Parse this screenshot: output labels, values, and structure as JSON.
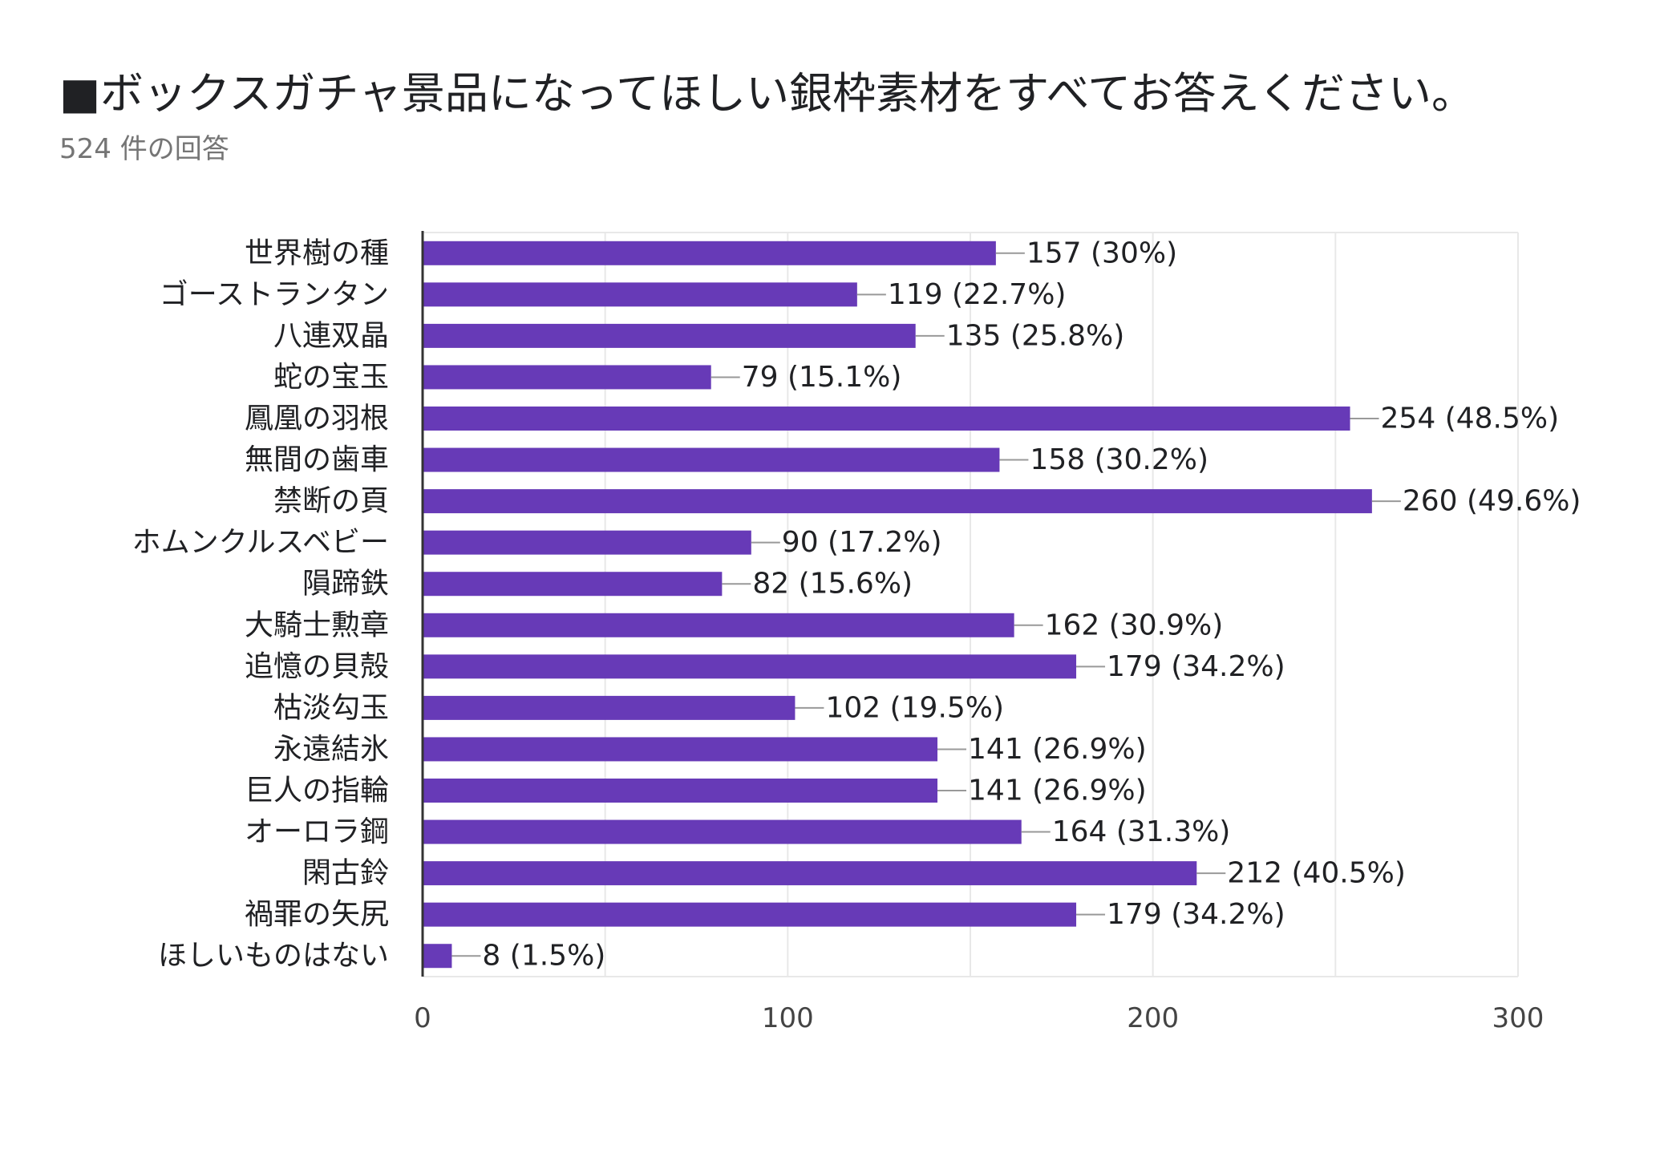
{
  "title": "■ボックスガチャ景品になってほしい銀枠素材をすべてお答えください。",
  "subtitle": "524 件の回答",
  "colors": {
    "bar": "#673ab7",
    "grid": "#e8e8e8",
    "axis": "#333333",
    "leader": "#999999"
  },
  "chart_data": {
    "type": "bar",
    "orientation": "horizontal",
    "title": "■ボックスガチャ景品になってほしい銀枠素材をすべてお答えください。",
    "subtitle": "524 件の回答",
    "xlabel": "",
    "ylabel": "",
    "xlim": [
      0,
      300
    ],
    "xticks": [
      0,
      100,
      200,
      300
    ],
    "xtick_labels": [
      "0",
      "100",
      "200",
      "300"
    ],
    "grid": true,
    "categories": [
      "世界樹の種",
      "ゴーストランタン",
      "八連双晶",
      "蛇の宝玉",
      "鳳凰の羽根",
      "無間の歯車",
      "禁断の頁",
      "ホムンクルスベビー",
      "隕蹄鉄",
      "大騎士勲章",
      "追憶の貝殻",
      "枯淡勾玉",
      "永遠結氷",
      "巨人の指輪",
      "オーロラ鋼",
      "閑古鈴",
      "禍罪の矢尻",
      "ほしいものはない"
    ],
    "values": [
      157,
      119,
      135,
      79,
      254,
      158,
      260,
      90,
      82,
      162,
      179,
      102,
      141,
      141,
      164,
      212,
      179,
      8
    ],
    "data_labels": [
      "157 (30%)",
      "119 (22.7%)",
      "135 (25.8%)",
      "79 (15.1%)",
      "254 (48.5%)",
      "158 (30.2%)",
      "260 (49.6%)",
      "90 (17.2%)",
      "82 (15.6%)",
      "162 (30.9%)",
      "179 (34.2%)",
      "102 (19.5%)",
      "141 (26.9%)",
      "141 (26.9%)",
      "164 (31.3%)",
      "212 (40.5%)",
      "179 (34.2%)",
      "8 (1.5%)"
    ]
  }
}
